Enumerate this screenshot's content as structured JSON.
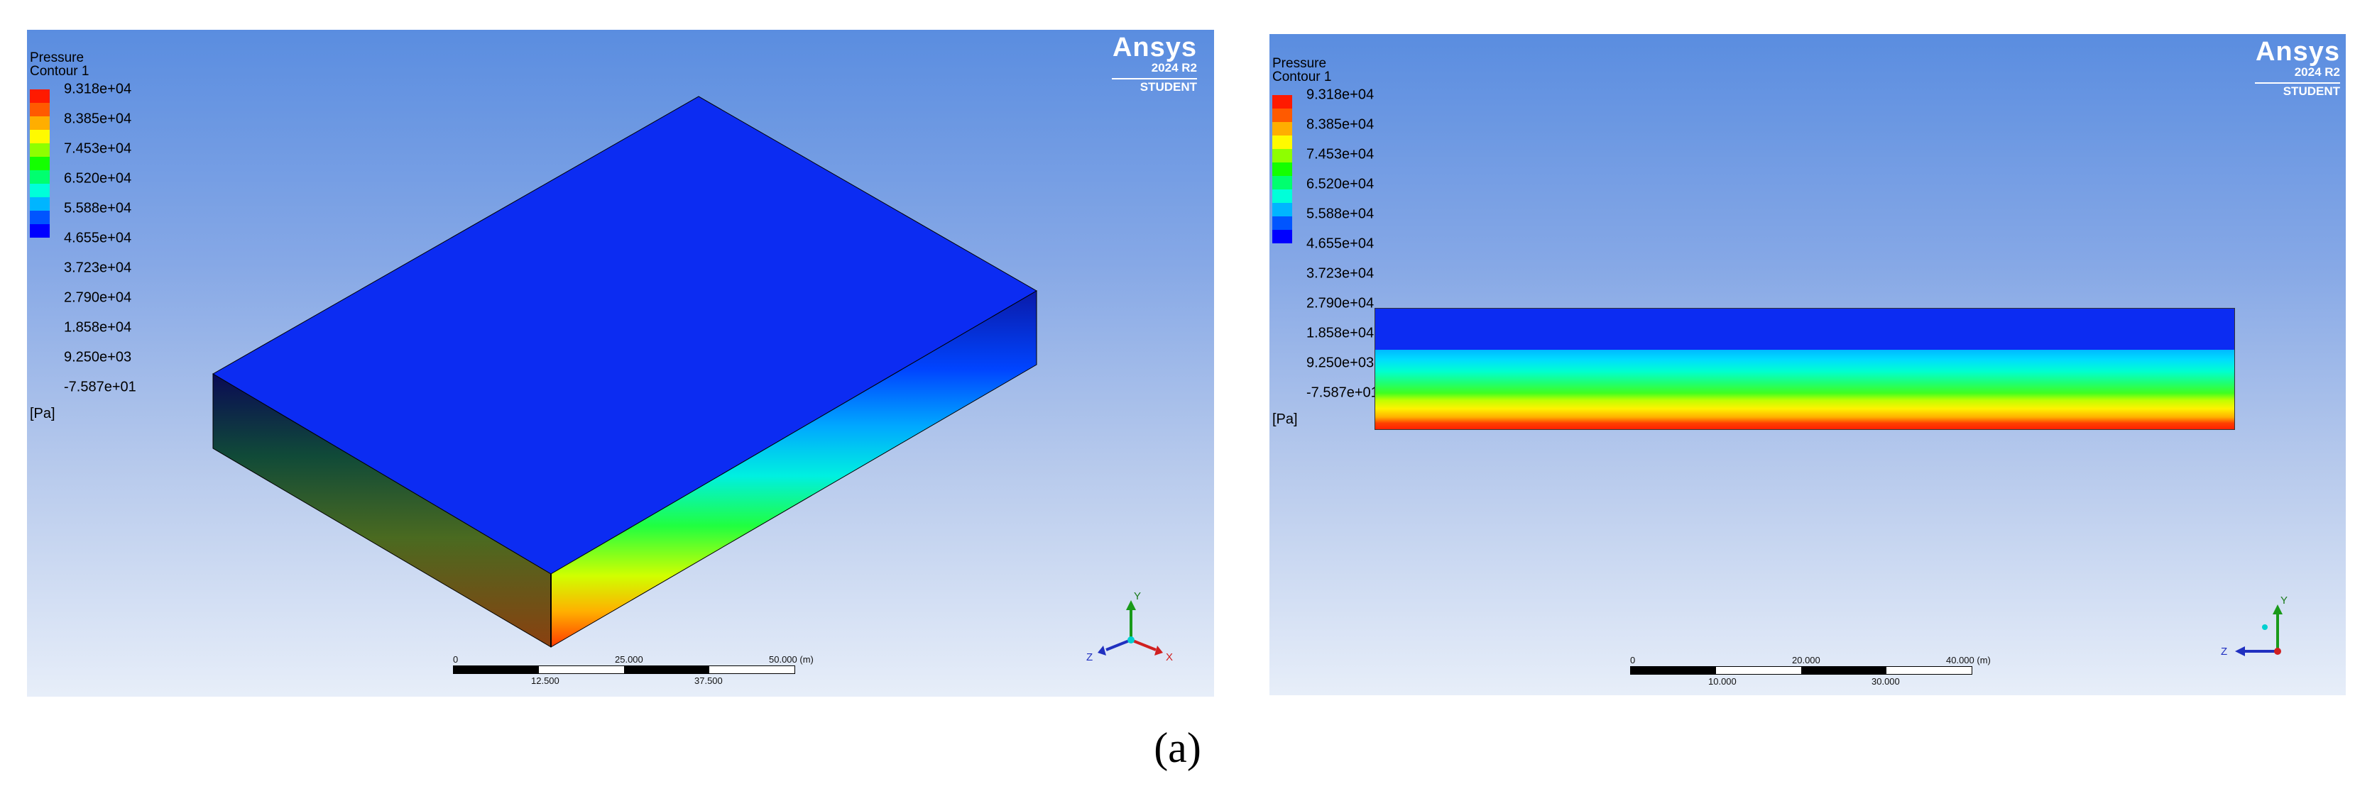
{
  "caption": "(a)",
  "colors": [
    "#0000ff",
    "#0055ff",
    "#00b5ff",
    "#00ffd9",
    "#00ff6f",
    "#14ff00",
    "#8eff00",
    "#fffa00",
    "#ffae00",
    "#ff5a00",
    "#ff1a00"
  ],
  "left_view": {
    "legend": {
      "title_line1": "Pressure",
      "title_line2": "Contour 1",
      "ticks": [
        "9.318e+04",
        "8.385e+04",
        "7.453e+04",
        "6.520e+04",
        "5.588e+04",
        "4.655e+04",
        "3.723e+04",
        "2.790e+04",
        "1.858e+04",
        "9.250e+03",
        "-7.587e+01"
      ],
      "unit": "[Pa]"
    },
    "logo": {
      "brand": "Ansys",
      "version": "2024 R2",
      "edition": "STUDENT"
    },
    "scale_bar": {
      "top_labels": [
        "0",
        "25.000",
        "50.000 (m)"
      ],
      "bottom_labels": [
        "12.500",
        "37.500"
      ]
    },
    "axes": {
      "y": "Y",
      "z": "Z",
      "x": "X"
    }
  },
  "right_view": {
    "legend": {
      "title_line1": "Pressure",
      "title_line2": "Contour 1",
      "ticks": [
        "9.318e+04",
        "8.385e+04",
        "7.453e+04",
        "6.520e+04",
        "5.588e+04",
        "4.655e+04",
        "3.723e+04",
        "2.790e+04",
        "1.858e+04",
        "9.250e+03",
        "-7.587e+01"
      ],
      "unit": "[Pa]"
    },
    "logo": {
      "brand": "Ansys",
      "version": "2024 R2",
      "edition": "STUDENT"
    },
    "scale_bar": {
      "top_labels": [
        "0",
        "20.000",
        "40.000 (m)"
      ],
      "bottom_labels": [
        "10.000",
        "30.000"
      ]
    },
    "axes": {
      "y": "Y",
      "z": "Z"
    }
  }
}
